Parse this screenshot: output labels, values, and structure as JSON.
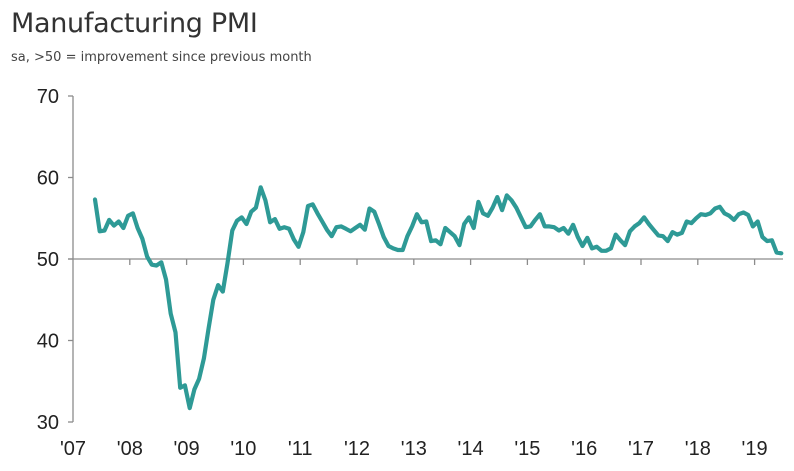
{
  "chart_data": {
    "type": "line",
    "title": "Manufacturing PMI",
    "subtitle": "sa, >50 = improvement since previous month",
    "xlabel": "",
    "ylabel": "",
    "ylim": [
      30,
      70
    ],
    "yticks": [
      "70",
      "60",
      "50",
      "40",
      "30"
    ],
    "ytick_values": [
      70,
      60,
      50,
      40,
      30
    ],
    "xlim": [
      2007,
      2019.55
    ],
    "xticks": [
      "'07",
      "'08",
      "'09",
      "'10",
      "'11",
      "'12",
      "'13",
      "'14",
      "'15",
      "'16",
      "'17",
      "'18",
      "'19"
    ],
    "xtick_values": [
      2007,
      2008,
      2009,
      2010,
      2011,
      2012,
      2013,
      2014,
      2015,
      2016,
      2017,
      2018,
      2019
    ],
    "x_axis_crosses_at": 50,
    "grid": false,
    "legend": "none",
    "series": [
      {
        "name": "Manufacturing PMI",
        "color": "#2e9a96",
        "frequency": "monthly",
        "start": "2007-05",
        "values": [
          57.3,
          53.4,
          53.5,
          54.8,
          54.1,
          54.6,
          53.8,
          55.3,
          55.6,
          53.8,
          52.5,
          50.3,
          49.3,
          49.2,
          49.6,
          47.5,
          43.3,
          41.0,
          34.2,
          34.5,
          31.7,
          34.0,
          35.3,
          37.8,
          41.5,
          45.0,
          46.8,
          46.0,
          49.5,
          53.5,
          54.7,
          55.1,
          54.3,
          55.8,
          56.3,
          58.8,
          57.2,
          54.5,
          54.9,
          53.7,
          53.9,
          53.7,
          52.4,
          51.5,
          53.3,
          56.5,
          56.7,
          55.6,
          54.6,
          53.6,
          52.8,
          53.9,
          54.0,
          53.7,
          53.4,
          53.8,
          54.2,
          53.6,
          56.2,
          55.8,
          54.3,
          52.7,
          51.6,
          51.3,
          51.1,
          51.1,
          52.8,
          54.0,
          55.5,
          54.5,
          54.6,
          52.2,
          52.3,
          51.8,
          53.8,
          53.3,
          52.8,
          51.7,
          54.3,
          55.1,
          53.8,
          57.0,
          55.6,
          55.3,
          56.3,
          57.6,
          56.0,
          57.8,
          57.2,
          56.3,
          55.1,
          53.9,
          54.0,
          54.8,
          55.5,
          54.0,
          54.0,
          53.9,
          53.5,
          53.8,
          53.1,
          54.2,
          52.7,
          51.6,
          52.6,
          51.3,
          51.5,
          51.0,
          51.0,
          51.3,
          53.0,
          52.3,
          51.7,
          53.4,
          54.0,
          54.4,
          55.1,
          54.3,
          53.6,
          52.9,
          52.8,
          52.2,
          53.3,
          53.0,
          53.2,
          54.6,
          54.4,
          55.0,
          55.5,
          55.4,
          55.6,
          56.2,
          56.4,
          55.6,
          55.3,
          54.8,
          55.5,
          55.7,
          55.4,
          54.0,
          54.6,
          52.7,
          52.2,
          52.3,
          50.8,
          50.7
        ]
      }
    ]
  }
}
